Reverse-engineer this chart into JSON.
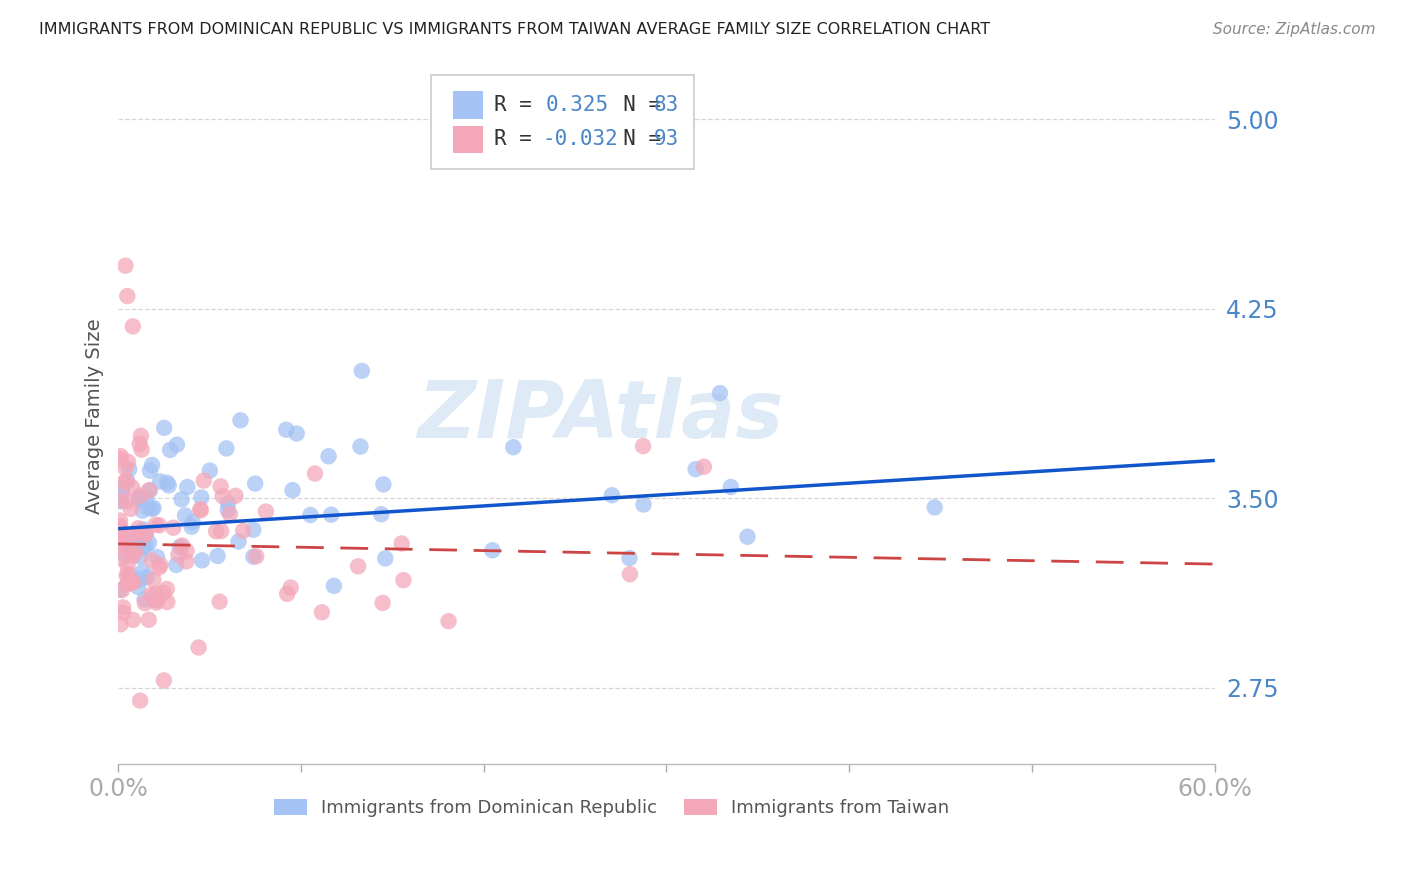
{
  "title": "IMMIGRANTS FROM DOMINICAN REPUBLIC VS IMMIGRANTS FROM TAIWAN AVERAGE FAMILY SIZE CORRELATION CHART",
  "source": "Source: ZipAtlas.com",
  "ylabel": "Average Family Size",
  "yticks": [
    2.75,
    3.5,
    4.25,
    5.0
  ],
  "xlim": [
    0.0,
    0.6
  ],
  "ylim": [
    2.45,
    5.2
  ],
  "series1_label": "Immigrants from Dominican Republic",
  "series2_label": "Immigrants from Taiwan",
  "series1_color": "#a4c2f4",
  "series2_color": "#f4a7b9",
  "series1_line_color": "#1155cc",
  "series2_line_color": "#cc4444",
  "R1": 0.325,
  "N1": 83,
  "R2": -0.032,
  "N2": 93,
  "background_color": "#ffffff",
  "grid_color": "#cccccc",
  "title_color": "#333333",
  "axis_color": "#4a86c8",
  "watermark": "ZIPAtlas",
  "trend1_x0": 0.0,
  "trend1_y0": 3.38,
  "trend1_x1": 0.6,
  "trend1_y1": 3.65,
  "trend2_x0": 0.0,
  "trend2_y0": 3.32,
  "trend2_x1": 0.6,
  "trend2_y1": 3.24
}
